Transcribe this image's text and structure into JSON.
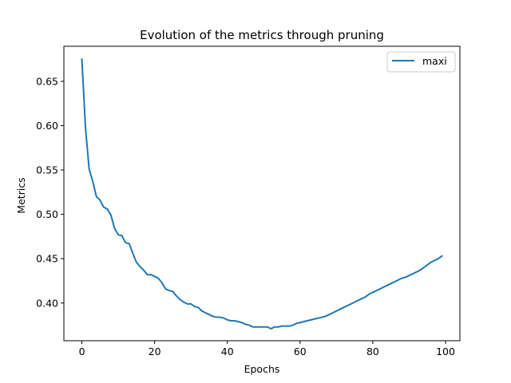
{
  "chart_data": {
    "type": "line",
    "title": "Evolution of the metrics through pruning",
    "xlabel": "Epochs",
    "ylabel": "Metrics",
    "xlim": [
      -4.95,
      103.95
    ],
    "ylim": [
      0.3575,
      0.6895
    ],
    "xticks": [
      0,
      20,
      40,
      60,
      80,
      100
    ],
    "xtick_labels": [
      "0",
      "20",
      "40",
      "60",
      "80",
      "100"
    ],
    "yticks": [
      0.4,
      0.45,
      0.5,
      0.55,
      0.6,
      0.65
    ],
    "ytick_labels": [
      "0.40",
      "0.45",
      "0.50",
      "0.55",
      "0.60",
      "0.65"
    ],
    "grid": false,
    "legend_position": "upper right",
    "series": [
      {
        "name": "maxi",
        "color": "#1f77b4",
        "x": [
          0,
          1,
          2,
          3,
          4,
          5,
          6,
          7,
          8,
          9,
          10,
          11,
          12,
          13,
          14,
          15,
          16,
          17,
          18,
          19,
          20,
          21,
          22,
          23,
          24,
          25,
          26,
          27,
          28,
          29,
          30,
          31,
          32,
          33,
          34,
          35,
          36,
          37,
          38,
          39,
          40,
          41,
          42,
          43,
          44,
          45,
          46,
          47,
          48,
          49,
          50,
          51,
          52,
          53,
          54,
          55,
          56,
          57,
          58,
          59,
          60,
          61,
          62,
          63,
          64,
          65,
          66,
          67,
          68,
          69,
          70,
          71,
          72,
          73,
          74,
          75,
          76,
          77,
          78,
          79,
          80,
          81,
          82,
          83,
          84,
          85,
          86,
          87,
          88,
          89,
          90,
          91,
          92,
          93,
          94,
          95,
          96,
          97,
          98,
          99
        ],
        "values": [
          0.675,
          0.597,
          0.551,
          0.537,
          0.52,
          0.516,
          0.508,
          0.506,
          0.499,
          0.484,
          0.477,
          0.476,
          0.468,
          0.467,
          0.456,
          0.446,
          0.441,
          0.437,
          0.432,
          0.432,
          0.43,
          0.428,
          0.423,
          0.416,
          0.414,
          0.413,
          0.408,
          0.404,
          0.401,
          0.399,
          0.399,
          0.396,
          0.395,
          0.391,
          0.389,
          0.387,
          0.385,
          0.384,
          0.384,
          0.383,
          0.381,
          0.38,
          0.38,
          0.379,
          0.378,
          0.376,
          0.375,
          0.373,
          0.373,
          0.373,
          0.373,
          0.373,
          0.371,
          0.373,
          0.373,
          0.374,
          0.374,
          0.374,
          0.375,
          0.377,
          0.378,
          0.379,
          0.38,
          0.381,
          0.382,
          0.383,
          0.384,
          0.385,
          0.387,
          0.389,
          0.391,
          0.393,
          0.395,
          0.397,
          0.399,
          0.401,
          0.403,
          0.405,
          0.407,
          0.41,
          0.412,
          0.414,
          0.416,
          0.418,
          0.42,
          0.422,
          0.424,
          0.426,
          0.428,
          0.429,
          0.431,
          0.433,
          0.435,
          0.437,
          0.44,
          0.443,
          0.446,
          0.448,
          0.45,
          0.453
        ]
      }
    ]
  }
}
